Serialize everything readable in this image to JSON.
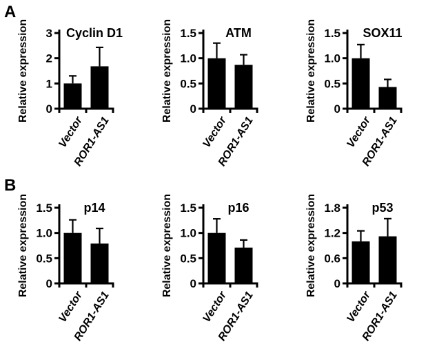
{
  "figure": {
    "background": "#ffffff",
    "ink_color": "#000000"
  },
  "panels": [
    {
      "label": "A"
    },
    {
      "label": "B"
    }
  ],
  "chart_data": [
    {
      "type": "bar",
      "panel": "A",
      "title": "Cyclin D1",
      "ylabel": "Relative expression",
      "xlabel": "",
      "categories": [
        "Vector",
        "ROR1-AS1"
      ],
      "values": [
        1.0,
        1.68
      ],
      "errors": [
        0.3,
        0.75
      ],
      "error_direction": "up",
      "ylim": [
        0,
        3
      ],
      "yticks": [
        0,
        1,
        2,
        3
      ],
      "ytick_labels": [
        "0",
        "1",
        "2",
        "3"
      ],
      "bar_color": "#000000",
      "grid": false,
      "legend": "none"
    },
    {
      "type": "bar",
      "panel": "A",
      "title": "ATM",
      "ylabel": "Relative expression",
      "xlabel": "",
      "categories": [
        "Vector",
        "ROR1-AS1"
      ],
      "values": [
        1.0,
        0.87
      ],
      "errors": [
        0.3,
        0.2
      ],
      "error_direction": "up",
      "ylim": [
        0,
        1.5
      ],
      "yticks": [
        0,
        0.5,
        1.0,
        1.5
      ],
      "ytick_labels": [
        "0",
        "0.5",
        "1.0",
        "1.5"
      ],
      "bar_color": "#000000",
      "grid": false,
      "legend": "none"
    },
    {
      "type": "bar",
      "panel": "A",
      "title": "SOX11",
      "ylabel": "Relative expression",
      "xlabel": "",
      "categories": [
        "Vector",
        "ROR1-AS1"
      ],
      "values": [
        1.0,
        0.43
      ],
      "errors": [
        0.27,
        0.15
      ],
      "error_direction": "up",
      "ylim": [
        0,
        1.5
      ],
      "yticks": [
        0,
        0.5,
        1.0,
        1.5
      ],
      "ytick_labels": [
        "0",
        "0.5",
        "1.0",
        "1.5"
      ],
      "bar_color": "#000000",
      "grid": false,
      "legend": "none"
    },
    {
      "type": "bar",
      "panel": "B",
      "title": "p14",
      "ylabel": "Relative expression",
      "xlabel": "",
      "categories": [
        "Vector",
        "ROR1-AS1"
      ],
      "values": [
        1.0,
        0.79
      ],
      "errors": [
        0.26,
        0.3
      ],
      "error_direction": "up",
      "ylim": [
        0,
        1.5
      ],
      "yticks": [
        0,
        0.5,
        1.0,
        1.5
      ],
      "ytick_labels": [
        "0",
        "0.5",
        "1.0",
        "1.5"
      ],
      "bar_color": "#000000",
      "grid": false,
      "legend": "none"
    },
    {
      "type": "bar",
      "panel": "B",
      "title": "p16",
      "ylabel": "Relative expression",
      "xlabel": "",
      "categories": [
        "Vector",
        "ROR1-AS1"
      ],
      "values": [
        1.0,
        0.71
      ],
      "errors": [
        0.28,
        0.15
      ],
      "error_direction": "up",
      "ylim": [
        0,
        1.5
      ],
      "yticks": [
        0,
        0.5,
        1.0,
        1.5
      ],
      "ytick_labels": [
        "0",
        "0.5",
        "1.0",
        "1.5"
      ],
      "bar_color": "#000000",
      "grid": false,
      "legend": "none"
    },
    {
      "type": "bar",
      "panel": "B",
      "title": "p53",
      "ylabel": "Relative expression",
      "xlabel": "",
      "categories": [
        "Vector",
        "ROR1-AS1"
      ],
      "values": [
        1.0,
        1.12
      ],
      "errors": [
        0.25,
        0.42
      ],
      "error_direction": "up",
      "ylim": [
        0,
        1.8
      ],
      "yticks": [
        0,
        0.6,
        1.2,
        1.8
      ],
      "ytick_labels": [
        "0",
        "0.6",
        "1.2",
        "1.8"
      ],
      "bar_color": "#000000",
      "grid": false,
      "legend": "none"
    }
  ]
}
